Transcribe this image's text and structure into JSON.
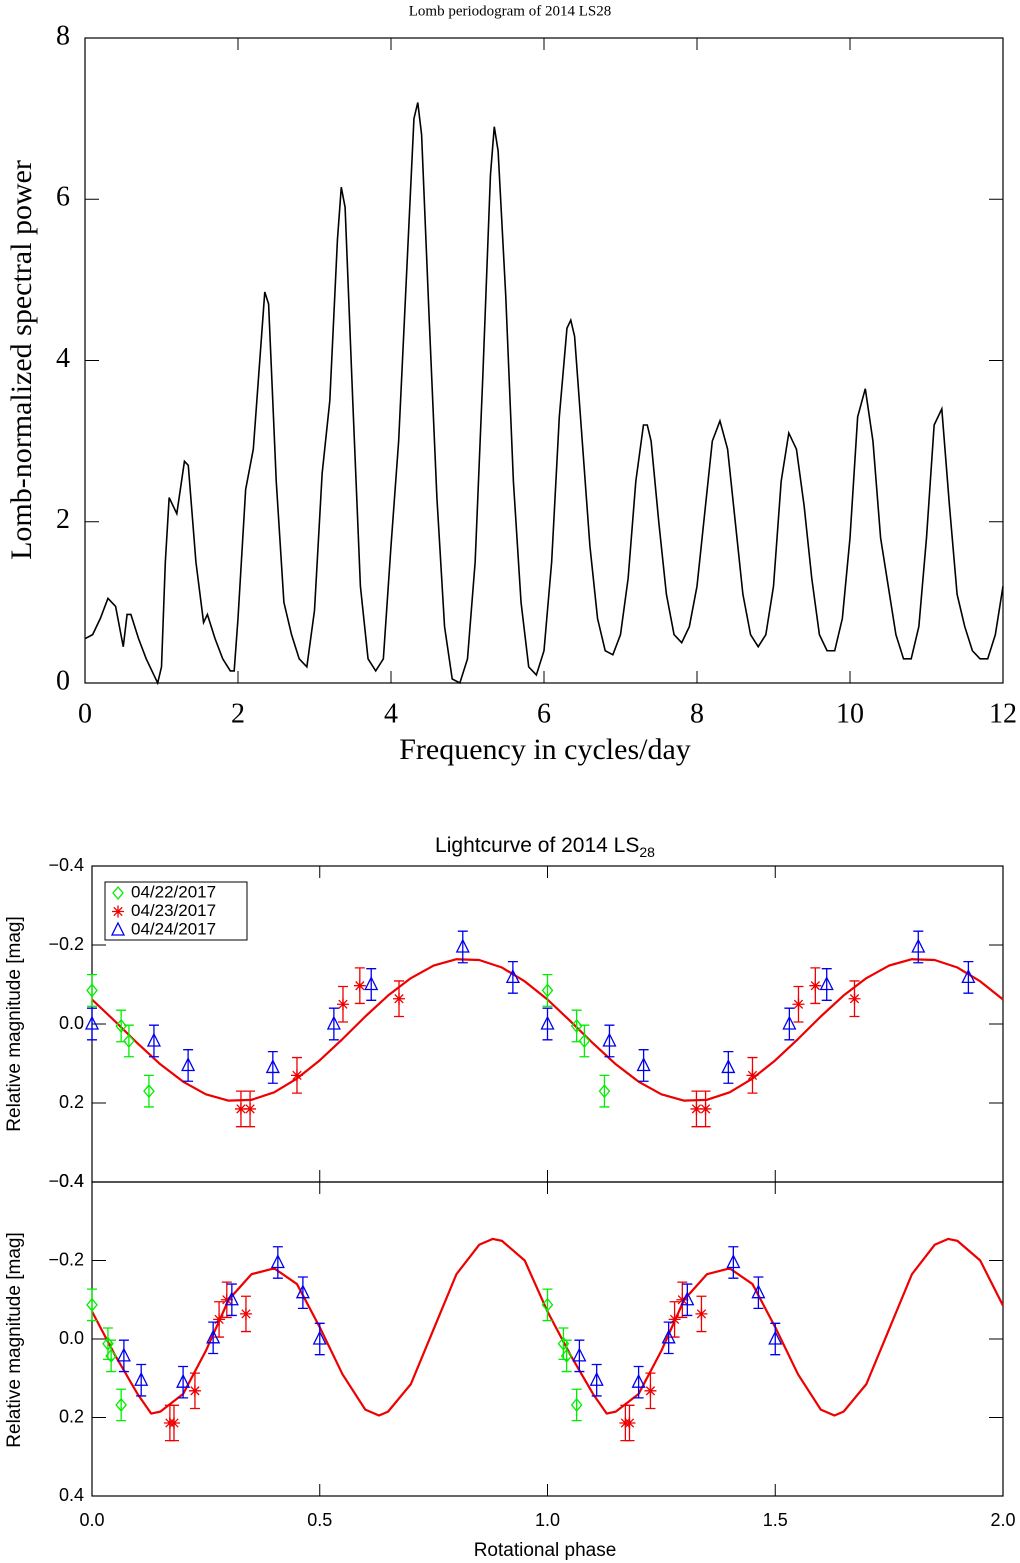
{
  "chart_data": [
    {
      "type": "line",
      "title": "Lomb periodogram of 2014 LS28",
      "x_label": "Frequency in cycles/day",
      "y_label": "Lomb-normalized spectral power",
      "x": [
        0,
        0.1,
        0.2,
        0.3,
        0.4,
        0.5,
        0.55,
        0.6,
        0.7,
        0.8,
        0.9,
        0.95,
        1.0,
        1.05,
        1.1,
        1.2,
        1.3,
        1.35,
        1.45,
        1.55,
        1.6,
        1.7,
        1.8,
        1.9,
        1.95,
        2.0,
        2.1,
        2.2,
        2.3,
        2.35,
        2.4,
        2.5,
        2.6,
        2.7,
        2.8,
        2.9,
        3.0,
        3.1,
        3.2,
        3.3,
        3.35,
        3.4,
        3.5,
        3.6,
        3.7,
        3.8,
        3.9,
        4.0,
        4.1,
        4.2,
        4.3,
        4.35,
        4.4,
        4.5,
        4.6,
        4.7,
        4.8,
        4.9,
        5.0,
        5.1,
        5.2,
        5.3,
        5.35,
        5.4,
        5.5,
        5.6,
        5.7,
        5.8,
        5.9,
        6.0,
        6.1,
        6.2,
        6.3,
        6.35,
        6.4,
        6.5,
        6.6,
        6.7,
        6.8,
        6.9,
        7.0,
        7.1,
        7.2,
        7.3,
        7.35,
        7.4,
        7.5,
        7.6,
        7.7,
        7.8,
        7.9,
        8.0,
        8.1,
        8.2,
        8.3,
        8.4,
        8.5,
        8.6,
        8.7,
        8.8,
        8.9,
        9.0,
        9.1,
        9.2,
        9.3,
        9.4,
        9.5,
        9.6,
        9.7,
        9.8,
        9.9,
        10.0,
        10.1,
        10.2,
        10.3,
        10.4,
        10.5,
        10.6,
        10.7,
        10.8,
        10.9,
        11.0,
        11.1,
        11.2,
        11.3,
        11.4,
        11.5,
        11.6,
        11.7,
        11.8,
        11.9,
        12.0
      ],
      "series": [
        {
          "color": "#000000",
          "values": [
            0.55,
            0.6,
            0.8,
            1.05,
            0.95,
            0.45,
            0.85,
            0.85,
            0.55,
            0.3,
            0.1,
            0.0,
            0.2,
            1.5,
            2.3,
            2.1,
            2.75,
            2.7,
            1.5,
            0.75,
            0.85,
            0.55,
            0.3,
            0.15,
            0.15,
            0.8,
            2.4,
            2.9,
            4.2,
            4.85,
            4.7,
            2.5,
            1.0,
            0.6,
            0.3,
            0.2,
            0.9,
            2.6,
            3.5,
            5.5,
            6.15,
            5.9,
            3.5,
            1.2,
            0.3,
            0.15,
            0.3,
            1.7,
            3.0,
            5.0,
            7.0,
            7.2,
            6.8,
            4.5,
            2.3,
            0.7,
            0.05,
            0.0,
            0.3,
            1.5,
            3.8,
            6.3,
            6.9,
            6.6,
            4.8,
            2.5,
            1.0,
            0.2,
            0.1,
            0.4,
            1.5,
            3.3,
            4.4,
            4.5,
            4.3,
            3.0,
            1.7,
            0.8,
            0.4,
            0.35,
            0.6,
            1.3,
            2.5,
            3.2,
            3.2,
            3.0,
            2.0,
            1.1,
            0.6,
            0.5,
            0.7,
            1.2,
            2.1,
            3.0,
            3.25,
            2.9,
            2.0,
            1.1,
            0.6,
            0.45,
            0.6,
            1.2,
            2.5,
            3.1,
            2.9,
            2.2,
            1.3,
            0.6,
            0.4,
            0.4,
            0.8,
            1.8,
            3.3,
            3.65,
            3.0,
            1.8,
            1.2,
            0.6,
            0.3,
            0.3,
            0.7,
            1.8,
            3.2,
            3.4,
            2.2,
            1.1,
            0.7,
            0.4,
            0.3,
            0.3,
            0.6,
            1.2
          ]
        }
      ],
      "xlim": [
        0,
        12
      ],
      "xticks": [
        0,
        2,
        4,
        6,
        8,
        10,
        12
      ],
      "ylim": [
        0,
        8
      ],
      "yticks": [
        0,
        2,
        4,
        6,
        8
      ]
    },
    {
      "type": "scatter",
      "title": "Lightcurve of 2014 LS",
      "title_subscript": "28",
      "y_label": "Relative magnitude [mag]",
      "legend": "top-left",
      "y_inverted": true,
      "xlim": [
        0,
        2
      ],
      "xticks": [
        0,
        0.5,
        1,
        1.5,
        2
      ],
      "ylim": [
        -0.4,
        0.4
      ],
      "yticks": [
        {
          "value": -0.4,
          "label": "−0.4"
        },
        {
          "value": -0.2,
          "label": "−0.2"
        },
        {
          "value": 0,
          "label": "0.0"
        },
        0.2,
        0.4
      ],
      "series": [
        {
          "name": "04/22/2017",
          "color": "#00ee00",
          "marker": "diamond",
          "x": [
            0.0,
            0.064,
            0.081,
            0.125,
            1.0,
            1.064,
            1.081,
            1.125
          ],
          "values": [
            -0.085,
            0.005,
            0.043,
            0.17,
            -0.085,
            0.005,
            0.043,
            0.17
          ],
          "errors": [
            0.04,
            0.04,
            0.04,
            0.04,
            0.04,
            0.04,
            0.04,
            0.04
          ]
        },
        {
          "name": "04/23/2017",
          "color": "#ee0000",
          "marker": "asterisk",
          "x": [
            0.327,
            0.347,
            0.45,
            0.551,
            0.588,
            0.674,
            1.327,
            1.347,
            1.45,
            1.551,
            1.588,
            1.674
          ],
          "values": [
            0.215,
            0.215,
            0.13,
            -0.05,
            -0.097,
            -0.064,
            0.215,
            0.215,
            0.13,
            -0.05,
            -0.097,
            -0.064
          ],
          "errors": [
            0.045,
            0.045,
            0.045,
            0.045,
            0.045,
            0.045,
            0.045,
            0.045,
            0.045,
            0.045,
            0.045,
            0.045
          ]
        },
        {
          "name": "04/24/2017",
          "color": "#0000ee",
          "marker": "triangle",
          "x": [
            0.0,
            0.136,
            0.211,
            0.397,
            0.531,
            0.613,
            0.814,
            0.924,
            1.0,
            1.136,
            1.211,
            1.397,
            1.531,
            1.613,
            1.814,
            1.924
          ],
          "values": [
            0.0,
            0.043,
            0.105,
            0.11,
            0.0,
            -0.1,
            -0.195,
            -0.118,
            0.0,
            0.043,
            0.105,
            0.11,
            0.0,
            -0.1,
            -0.195,
            -0.118
          ],
          "errors": [
            0.04,
            0.04,
            0.04,
            0.04,
            0.04,
            0.04,
            0.04,
            0.04,
            0.04,
            0.04,
            0.04,
            0.04,
            0.04,
            0.04,
            0.04,
            0.04
          ]
        }
      ],
      "fit": {
        "color": "#ee0000",
        "x": [
          0,
          0.05,
          0.1,
          0.15,
          0.2,
          0.25,
          0.3,
          0.35,
          0.4,
          0.45,
          0.5,
          0.55,
          0.6,
          0.65,
          0.7,
          0.75,
          0.8,
          0.85,
          0.9,
          0.95,
          1.0,
          1.05,
          1.1,
          1.15,
          1.2,
          1.25,
          1.3,
          1.35,
          1.4,
          1.45,
          1.5,
          1.55,
          1.6,
          1.65,
          1.7,
          1.75,
          1.8,
          1.85,
          1.9,
          1.95,
          2.0
        ],
        "values": [
          -0.062,
          -0.0075,
          0.049,
          0.102,
          0.146,
          0.178,
          0.194,
          0.192,
          0.173,
          0.138,
          0.092,
          0.038,
          -0.019,
          -0.072,
          -0.116,
          -0.148,
          -0.164,
          -0.162,
          -0.143,
          -0.108,
          -0.062,
          -0.0075,
          0.049,
          0.102,
          0.146,
          0.178,
          0.194,
          0.192,
          0.173,
          0.138,
          0.092,
          0.038,
          -0.019,
          -0.072,
          -0.116,
          -0.148,
          -0.164,
          -0.162,
          -0.143,
          -0.108,
          -0.062
        ]
      }
    },
    {
      "type": "scatter",
      "y_label": "Relative magnitude [mag]",
      "x_label": "Rotational phase",
      "y_inverted": true,
      "xlim": [
        0,
        2
      ],
      "xticks": [
        {
          "value": 0,
          "label": "0.0"
        },
        0.5,
        {
          "value": 1,
          "label": "1.0"
        },
        1.5,
        {
          "value": 2,
          "label": "2.0"
        }
      ],
      "ylim": [
        -0.4,
        0.4
      ],
      "yticks": [
        {
          "value": -0.4,
          "label": "−0.4"
        },
        {
          "value": -0.2,
          "label": "−0.2"
        },
        {
          "value": 0,
          "label": "0.0"
        },
        0.2,
        0.4
      ],
      "series": [
        {
          "color": "#00ee00",
          "marker": "diamond",
          "x": [
            0.0,
            0.035,
            0.042,
            0.064,
            1.0,
            1.035,
            1.042,
            1.064
          ],
          "values": [
            -0.087,
            0.012,
            0.043,
            0.168,
            -0.087,
            0.012,
            0.043,
            0.168
          ],
          "errors": [
            0.04,
            0.04,
            0.04,
            0.04,
            0.04,
            0.04,
            0.04,
            0.04
          ]
        },
        {
          "color": "#ee0000",
          "marker": "asterisk",
          "x": [
            0.171,
            0.18,
            0.226,
            0.279,
            0.296,
            0.338,
            1.171,
            1.18,
            1.226,
            1.279,
            1.296,
            1.338
          ],
          "values": [
            0.214,
            0.214,
            0.132,
            -0.05,
            -0.1,
            -0.064,
            0.214,
            0.214,
            0.132,
            -0.05,
            -0.1,
            -0.064
          ],
          "errors": [
            0.045,
            0.045,
            0.045,
            0.045,
            0.045,
            0.045,
            0.045,
            0.045,
            0.045,
            0.045,
            0.045,
            0.045
          ]
        },
        {
          "color": "#0000ee",
          "marker": "triangle",
          "x": [
            0.07,
            0.108,
            0.2,
            0.266,
            0.307,
            0.408,
            0.463,
            0.5,
            1.07,
            1.108,
            1.2,
            1.266,
            1.307,
            1.408,
            1.463,
            1.5
          ],
          "values": [
            0.043,
            0.105,
            0.11,
            -0.003,
            -0.1,
            -0.195,
            -0.118,
            0.0,
            0.043,
            0.105,
            0.11,
            -0.003,
            -0.1,
            -0.195,
            -0.118,
            0.0
          ],
          "errors": [
            0.04,
            0.04,
            0.04,
            0.04,
            0.04,
            0.04,
            0.04,
            0.04,
            0.04,
            0.04,
            0.04,
            0.04,
            0.04,
            0.04,
            0.04,
            0.04
          ]
        }
      ],
      "fit": {
        "color": "#ee0000",
        "x": [
          0,
          0.05,
          0.1,
          0.13,
          0.15,
          0.2,
          0.25,
          0.3,
          0.35,
          0.4,
          0.45,
          0.5,
          0.55,
          0.6,
          0.63,
          0.65,
          0.7,
          0.75,
          0.8,
          0.85,
          0.88,
          0.9,
          0.95,
          1.0,
          1.05,
          1.1,
          1.13,
          1.15,
          1.2,
          1.25,
          1.3,
          1.35,
          1.4,
          1.45,
          1.5,
          1.55,
          1.6,
          1.63,
          1.65,
          1.7,
          1.75,
          1.8,
          1.85,
          1.88,
          1.9,
          1.95,
          2.0
        ],
        "values": [
          -0.07,
          0.04,
          0.14,
          0.19,
          0.185,
          0.14,
          0.03,
          -0.1,
          -0.165,
          -0.18,
          -0.14,
          -0.03,
          0.09,
          0.18,
          0.195,
          0.185,
          0.115,
          -0.025,
          -0.165,
          -0.24,
          -0.255,
          -0.25,
          -0.2,
          -0.07,
          0.04,
          0.14,
          0.19,
          0.185,
          0.14,
          0.03,
          -0.1,
          -0.165,
          -0.18,
          -0.14,
          -0.03,
          0.09,
          0.18,
          0.195,
          0.185,
          0.115,
          -0.025,
          -0.165,
          -0.24,
          -0.255,
          -0.25,
          -0.2,
          -0.085
        ]
      }
    }
  ]
}
